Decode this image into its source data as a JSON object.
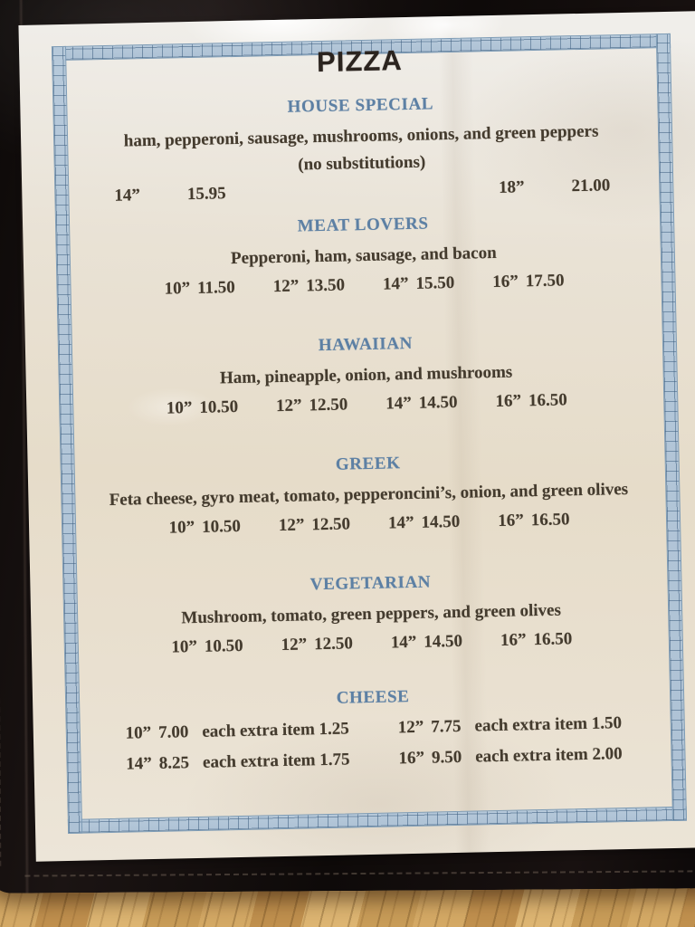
{
  "menu": {
    "title": "PIZZA",
    "sections": [
      {
        "name": "HOUSE SPECIAL",
        "description": "ham, pepperoni, sausage, mushrooms, onions, and green peppers",
        "note": "(no substitutions)",
        "prices": [
          {
            "size": "14”",
            "price": "15.95"
          },
          {
            "size": "18”",
            "price": "21.00"
          }
        ]
      },
      {
        "name": "MEAT LOVERS",
        "description": "Pepperoni, ham, sausage, and bacon",
        "prices": [
          {
            "size": "10”",
            "price": "11.50"
          },
          {
            "size": "12”",
            "price": "13.50"
          },
          {
            "size": "14”",
            "price": "15.50"
          },
          {
            "size": "16”",
            "price": "17.50"
          }
        ]
      },
      {
        "name": "HAWAIIAN",
        "description": "Ham, pineapple, onion, and mushrooms",
        "prices": [
          {
            "size": "10”",
            "price": "10.50"
          },
          {
            "size": "12”",
            "price": "12.50"
          },
          {
            "size": "14”",
            "price": "14.50"
          },
          {
            "size": "16”",
            "price": "16.50"
          }
        ]
      },
      {
        "name": "GREEK",
        "description": "Feta cheese, gyro meat, tomato, pepperoncini’s, onion, and green olives",
        "prices": [
          {
            "size": "10”",
            "price": "10.50"
          },
          {
            "size": "12”",
            "price": "12.50"
          },
          {
            "size": "14”",
            "price": "14.50"
          },
          {
            "size": "16”",
            "price": "16.50"
          }
        ]
      },
      {
        "name": "VEGETARIAN",
        "description": "Mushroom, tomato, green peppers, and green olives",
        "prices": [
          {
            "size": "10”",
            "price": "10.50"
          },
          {
            "size": "12”",
            "price": "12.50"
          },
          {
            "size": "14”",
            "price": "14.50"
          },
          {
            "size": "16”",
            "price": "16.50"
          }
        ]
      },
      {
        "name": "CHEESE",
        "rows": [
          [
            {
              "size": "10”",
              "price": "7.00",
              "extra": "each extra item 1.25"
            },
            {
              "size": "12”",
              "price": "7.75",
              "extra": "each extra item 1.50"
            }
          ],
          [
            {
              "size": "14”",
              "price": "8.25",
              "extra": "each extra item 1.75"
            },
            {
              "size": "16”",
              "price": "9.50",
              "extra": "each extra item 2.00"
            }
          ]
        ]
      }
    ],
    "colors": {
      "heading_blue": "#5d80a4",
      "border_blue": "#b6c9da",
      "body_text": "#443b2e",
      "title_text": "#2b241f",
      "paper": "#eae3d6",
      "binder_black": "#15100d",
      "wood_tan": "#c89c5b"
    }
  }
}
